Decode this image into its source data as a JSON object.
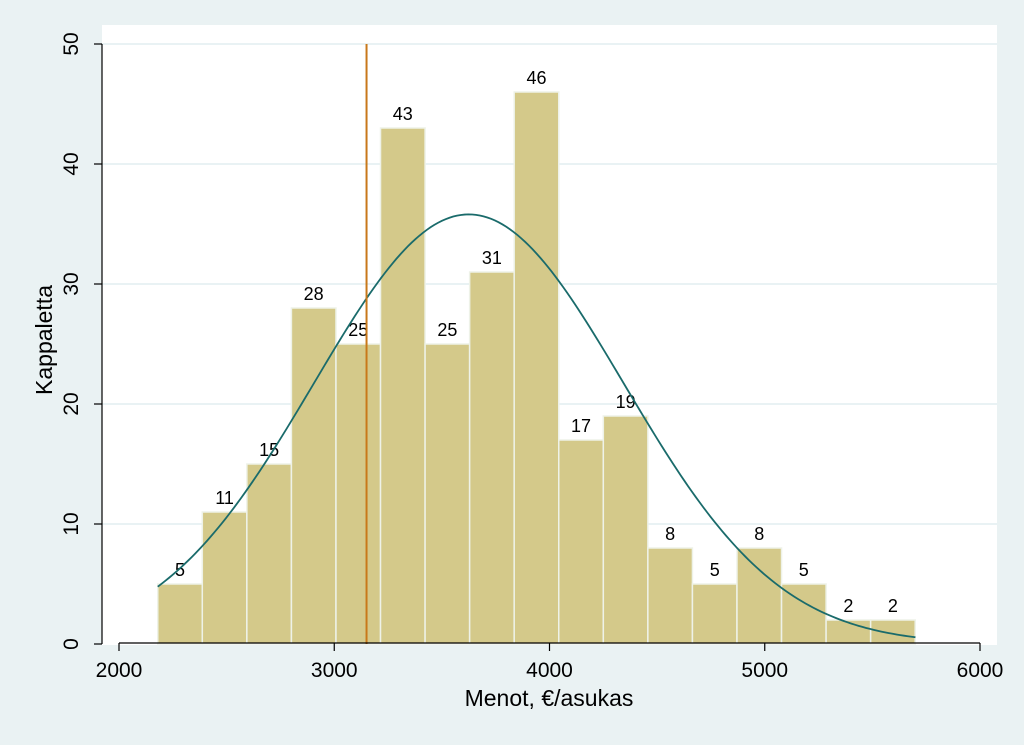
{
  "chart_data": {
    "type": "bar",
    "subtype": "histogram",
    "title": "",
    "xlabel": "Menot, €/asukas",
    "ylabel": "Kappaletta",
    "xlim": [
      2000,
      6000
    ],
    "ylim": [
      0,
      50
    ],
    "x_ticks": [
      "2000",
      "3000",
      "4000",
      "5000",
      "6000"
    ],
    "y_ticks": [
      "0",
      "10",
      "20",
      "30",
      "40",
      "50"
    ],
    "bin_start": 2180,
    "bin_width": 207,
    "values": [
      5,
      11,
      15,
      28,
      25,
      43,
      25,
      31,
      46,
      17,
      19,
      8,
      5,
      8,
      5,
      2,
      2
    ],
    "labels": [
      "5",
      "11",
      "15",
      "28",
      "25",
      "43",
      "25",
      "31",
      "46",
      "17",
      "19",
      "8",
      "5",
      "8",
      "5",
      "2",
      "2"
    ],
    "normal_curve": {
      "mean": 3625,
      "sd": 720,
      "peak": 35.8,
      "x_range": [
        2180,
        5700
      ]
    },
    "reference_line_x": 3150,
    "grid": true,
    "colors": {
      "bar_fill": "#d4c98a",
      "bar_stroke": "#eef2e8",
      "curve": "#1a6b6b",
      "reference_line": "#c8781a",
      "plot_background": "#ffffff",
      "page_background": "#eaf2f3",
      "grid": "#e2eef0"
    }
  }
}
